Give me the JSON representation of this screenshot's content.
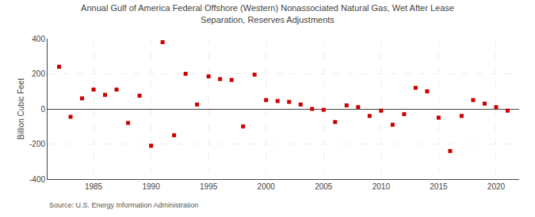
{
  "chart_data": {
    "type": "scatter",
    "title": "Annual Gulf of America Federal Offshore (Western) Nonassociated Natural Gas, Wet After Lease\nSeparation, Reserves Adjustments",
    "ylabel": "Billion Cubic Feet",
    "annotations": [
      "Source: U.S. Energy Information Administration"
    ],
    "x": [
      1982,
      1983,
      1984,
      1985,
      1986,
      1987,
      1988,
      1989,
      1990,
      1991,
      1992,
      1993,
      1994,
      1995,
      1996,
      1997,
      1998,
      1999,
      2000,
      2001,
      2002,
      2003,
      2004,
      2005,
      2006,
      2007,
      2008,
      2009,
      2010,
      2011,
      2012,
      2013,
      2014,
      2015,
      2016,
      2017,
      2018,
      2019,
      2020,
      2021
    ],
    "values": [
      240,
      -45,
      60,
      110,
      80,
      110,
      -80,
      75,
      -210,
      380,
      -150,
      200,
      25,
      185,
      170,
      165,
      -100,
      195,
      50,
      45,
      40,
      25,
      0,
      -5,
      -75,
      20,
      10,
      -40,
      -10,
      -90,
      -30,
      120,
      100,
      -50,
      -240,
      -40,
      50,
      30,
      10,
      -10
    ],
    "color": "#cc0000",
    "marker": "square",
    "xlim": [
      1981,
      2022
    ],
    "xticks": [
      1985,
      1990,
      1995,
      2000,
      2005,
      2010,
      2015,
      2020
    ],
    "ylim": [
      -400,
      400
    ],
    "yticks": [
      -400,
      -200,
      0,
      200,
      400
    ],
    "grid": true
  }
}
